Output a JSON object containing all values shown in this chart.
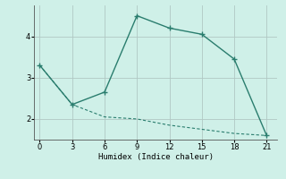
{
  "xlabel": "Humidex (Indice chaleur)",
  "bg_color": "#cff0e8",
  "line_color": "#2a7d6e",
  "grid_color": "#b0c8c4",
  "upper_x": [
    0,
    3,
    6,
    9,
    12,
    15,
    18,
    21
  ],
  "upper_y": [
    3.3,
    2.35,
    2.65,
    4.5,
    4.2,
    4.05,
    3.45,
    1.6
  ],
  "lower_x": [
    0,
    3,
    6,
    9,
    12,
    15,
    18,
    21
  ],
  "lower_y": [
    3.3,
    2.35,
    2.05,
    2.0,
    1.85,
    1.75,
    1.65,
    1.6
  ],
  "xlim": [
    -0.5,
    22
  ],
  "ylim": [
    1.5,
    4.75
  ],
  "yticks": [
    2,
    3,
    4
  ],
  "xticks": [
    0,
    3,
    6,
    9,
    12,
    15,
    18,
    21
  ]
}
